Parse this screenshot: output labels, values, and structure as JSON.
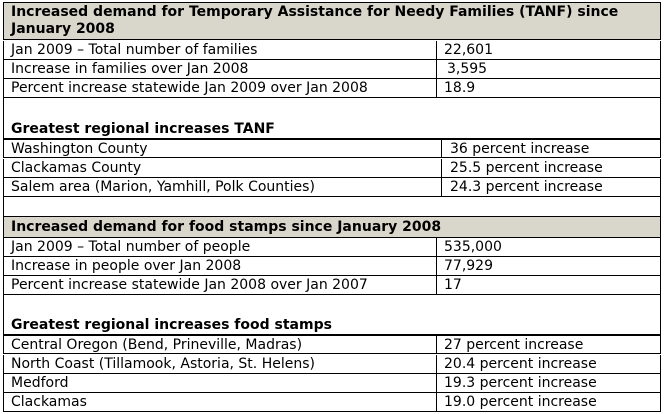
{
  "tanf": {
    "title": "Increased demand for Temporary Assistance for Needy Families (TANF) since January 2008",
    "rows": [
      {
        "label": "Jan 2009 – Total number of families",
        "value": "22,601"
      },
      {
        "label": "Increase in families over Jan 2008",
        "value": "3,595"
      },
      {
        "label": "Percent increase statewide Jan 2009 over Jan 2008",
        "value": "18.9"
      }
    ],
    "regional_title": "Greatest regional increases TANF",
    "regional_rows": [
      {
        "label": "Washington County",
        "value": "36 percent increase"
      },
      {
        "label": "Clackamas County",
        "value": "25.5 percent increase"
      },
      {
        "label": "Salem area (Marion, Yamhill, Polk Counties)",
        "value": "24.3 percent increase"
      }
    ]
  },
  "food": {
    "title": "Increased demand for food stamps since January 2008",
    "rows": [
      {
        "label": "Jan 2009 – Total number of people",
        "value": "535,000"
      },
      {
        "label": "Increase in people over Jan 2008",
        "value": "77,929"
      },
      {
        "label": "Percent increase statewide Jan 2008 over Jan 2007",
        "value": "17"
      }
    ],
    "regional_title": "Greatest regional increases food stamps",
    "regional_rows": [
      {
        "label": "Central Oregon (Bend, Prineville, Madras)",
        "value": "27 percent increase"
      },
      {
        "label": "North Coast (Tillamook, Astoria, St. Helens)",
        "value": "20.4 percent increase"
      },
      {
        "label": "Medford",
        "value": "19.3 percent increase"
      },
      {
        "label": "Clackamas",
        "value": "19.0 percent increase"
      }
    ]
  },
  "colors": {
    "header_fill": "#d9d7cc",
    "border": "#000000",
    "text": "#000000"
  }
}
